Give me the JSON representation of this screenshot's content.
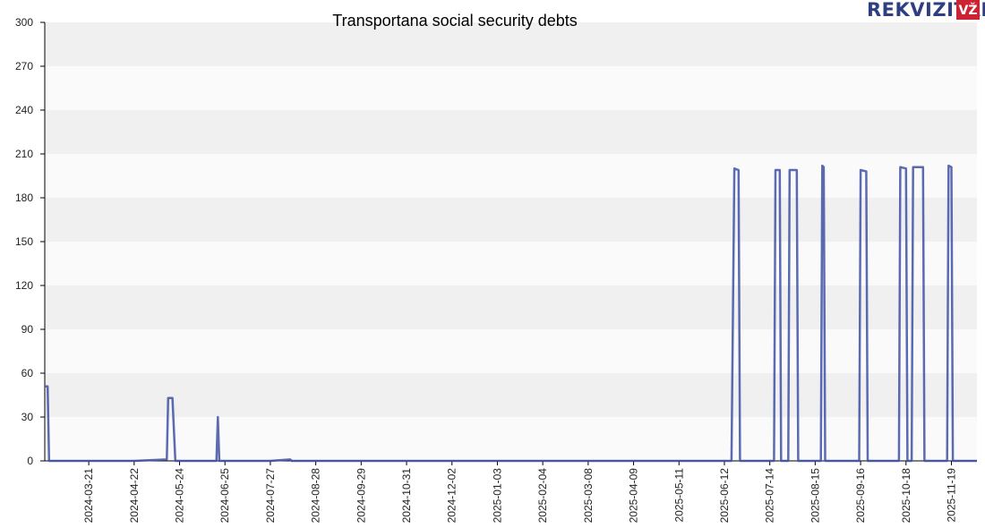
{
  "logo": {
    "text": "REKVIZITAI",
    "badge": "VŽ"
  },
  "colors": {
    "line": "#3f51a3",
    "band_light": "#fafafa",
    "band_dark": "#f0f0f0",
    "axis": "#000000",
    "logo_badge": "#cc2233"
  },
  "chart_data": {
    "type": "line",
    "title": "Transportana social security debts",
    "xlabel": "",
    "ylabel": "",
    "ylim": [
      0,
      300
    ],
    "yticks": [
      0,
      30,
      60,
      90,
      120,
      150,
      180,
      210,
      240,
      270,
      300
    ],
    "xlim": [
      "2024-02-19",
      "2025-12-07"
    ],
    "xtick_labels": [
      "2024-03-21",
      "2024-04-22",
      "2024-05-24",
      "2024-06-25",
      "2024-07-27",
      "2024-08-28",
      "2024-09-29",
      "2024-10-31",
      "2024-12-02",
      "2025-01-03",
      "2025-02-04",
      "2025-03-08",
      "2025-04-09",
      "2025-05-11",
      "2025-06-12",
      "2025-07-14",
      "2025-08-15",
      "2025-09-16",
      "2025-10-18",
      "2025-11-19"
    ],
    "grid": "horizontal bands",
    "legend": "none",
    "series": [
      {
        "color": "#3f51a3",
        "points": [
          [
            "2024-02-19",
            51
          ],
          [
            "2024-02-21",
            51
          ],
          [
            "2024-02-22",
            0
          ],
          [
            "2024-04-22",
            0
          ],
          [
            "2024-05-15",
            1
          ],
          [
            "2024-05-16",
            43
          ],
          [
            "2024-05-19",
            43
          ],
          [
            "2024-05-21",
            0
          ],
          [
            "2024-06-19",
            0
          ],
          [
            "2024-06-20",
            30
          ],
          [
            "2024-06-21",
            0
          ],
          [
            "2024-07-27",
            0
          ],
          [
            "2024-08-10",
            1
          ],
          [
            "2024-08-11",
            0
          ],
          [
            "2025-06-17",
            0
          ],
          [
            "2025-06-19",
            200
          ],
          [
            "2025-06-22",
            199
          ],
          [
            "2025-06-23",
            0
          ],
          [
            "2025-07-17",
            0
          ],
          [
            "2025-07-18",
            199
          ],
          [
            "2025-07-21",
            199
          ],
          [
            "2025-07-22",
            0
          ],
          [
            "2025-07-27",
            0
          ],
          [
            "2025-07-28",
            199
          ],
          [
            "2025-08-02",
            199
          ],
          [
            "2025-08-03",
            0
          ],
          [
            "2025-08-19",
            0
          ],
          [
            "2025-08-20",
            202
          ],
          [
            "2025-08-21",
            201
          ],
          [
            "2025-08-22",
            0
          ],
          [
            "2025-09-15",
            0
          ],
          [
            "2025-09-16",
            199
          ],
          [
            "2025-09-20",
            198
          ],
          [
            "2025-09-21",
            0
          ],
          [
            "2025-10-13",
            0
          ],
          [
            "2025-10-14",
            201
          ],
          [
            "2025-10-18",
            200
          ],
          [
            "2025-10-19",
            0
          ],
          [
            "2025-10-22",
            0
          ],
          [
            "2025-10-23",
            201
          ],
          [
            "2025-10-30",
            201
          ],
          [
            "2025-10-31",
            0
          ],
          [
            "2025-11-16",
            0
          ],
          [
            "2025-11-17",
            202
          ],
          [
            "2025-11-19",
            201
          ],
          [
            "2025-11-20",
            0
          ],
          [
            "2025-12-07",
            0
          ]
        ]
      }
    ]
  }
}
